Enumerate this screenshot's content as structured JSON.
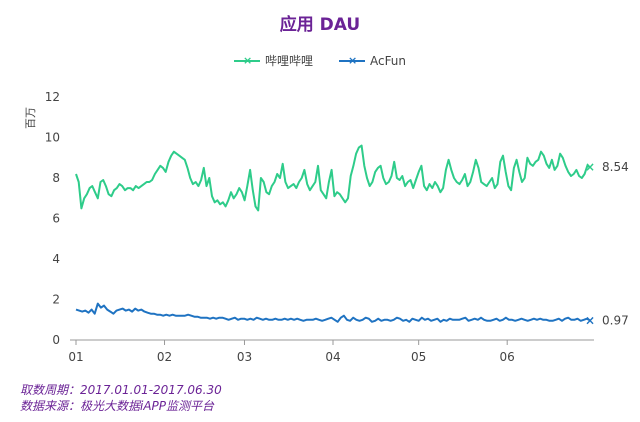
{
  "colors": {
    "title": "#6b2396",
    "bilibili": "#2ecc8a",
    "acfun": "#1f73c2"
  },
  "chart_data": {
    "type": "line",
    "title": "应用 DAU",
    "ylabel": "百万",
    "ylim": [
      0,
      12
    ],
    "yticks": [
      0,
      2,
      4,
      6,
      8,
      10,
      12
    ],
    "x_range": [
      "2017-01-01",
      "2017-06-30"
    ],
    "xticks": [
      "01",
      "02",
      "03",
      "04",
      "05",
      "06"
    ],
    "grid": false,
    "legend_position": "top-center",
    "series": [
      {
        "name": "哔哩哔哩",
        "color": "#2ecc8a",
        "end_label": "8.54",
        "values": [
          8.2,
          7.8,
          6.5,
          7.0,
          7.2,
          7.5,
          7.6,
          7.3,
          7.0,
          7.8,
          7.9,
          7.6,
          7.2,
          7.1,
          7.4,
          7.5,
          7.7,
          7.6,
          7.4,
          7.5,
          7.5,
          7.4,
          7.6,
          7.5,
          7.6,
          7.7,
          7.8,
          7.8,
          7.9,
          8.2,
          8.4,
          8.6,
          8.5,
          8.3,
          8.8,
          9.1,
          9.3,
          9.2,
          9.1,
          9.0,
          8.9,
          8.5,
          8.0,
          7.7,
          7.8,
          7.6,
          7.9,
          8.5,
          7.6,
          8.0,
          7.1,
          6.8,
          6.9,
          6.7,
          6.8,
          6.6,
          6.9,
          7.3,
          7.0,
          7.2,
          7.5,
          7.3,
          6.9,
          7.6,
          8.4,
          7.4,
          6.6,
          6.4,
          8.0,
          7.8,
          7.3,
          7.2,
          7.6,
          7.8,
          8.2,
          8.0,
          8.7,
          7.8,
          7.5,
          7.6,
          7.7,
          7.5,
          7.8,
          8.0,
          8.4,
          7.7,
          7.4,
          7.6,
          7.8,
          8.6,
          7.4,
          7.2,
          7.0,
          7.8,
          8.4,
          7.1,
          7.3,
          7.2,
          7.0,
          6.8,
          7.0,
          8.1,
          8.6,
          9.2,
          9.5,
          9.6,
          8.6,
          8.0,
          7.6,
          7.8,
          8.3,
          8.5,
          8.6,
          8.0,
          7.7,
          7.8,
          8.1,
          8.8,
          8.0,
          7.9,
          8.1,
          7.6,
          7.8,
          7.9,
          7.5,
          7.9,
          8.3,
          8.6,
          7.6,
          7.4,
          7.7,
          7.5,
          7.8,
          7.6,
          7.3,
          7.5,
          8.4,
          8.9,
          8.4,
          8.0,
          7.8,
          7.7,
          7.9,
          8.2,
          7.6,
          7.8,
          8.3,
          8.9,
          8.5,
          7.8,
          7.7,
          7.6,
          7.8,
          8.0,
          7.5,
          7.7,
          8.8,
          9.1,
          8.3,
          7.6,
          7.4,
          8.5,
          8.9,
          8.3,
          7.8,
          8.0,
          9.0,
          8.7,
          8.6,
          8.8,
          8.9,
          9.3,
          9.1,
          8.7,
          8.5,
          8.9,
          8.4,
          8.6,
          9.2,
          9.0,
          8.6,
          8.3,
          8.1,
          8.2,
          8.4,
          8.1,
          8.0,
          8.2,
          8.6,
          8.54
        ]
      },
      {
        "name": "AcFun",
        "color": "#1f73c2",
        "end_label": "0.97",
        "values": [
          1.5,
          1.45,
          1.4,
          1.45,
          1.35,
          1.5,
          1.3,
          1.8,
          1.6,
          1.7,
          1.5,
          1.4,
          1.3,
          1.45,
          1.5,
          1.55,
          1.45,
          1.5,
          1.4,
          1.55,
          1.45,
          1.5,
          1.4,
          1.35,
          1.3,
          1.3,
          1.25,
          1.25,
          1.2,
          1.25,
          1.2,
          1.25,
          1.2,
          1.2,
          1.2,
          1.2,
          1.25,
          1.2,
          1.15,
          1.15,
          1.1,
          1.1,
          1.1,
          1.05,
          1.1,
          1.05,
          1.1,
          1.1,
          1.05,
          1.0,
          1.05,
          1.1,
          1.0,
          1.05,
          1.05,
          1.0,
          1.05,
          1.0,
          1.1,
          1.05,
          1.0,
          1.05,
          1.0,
          1.0,
          1.05,
          1.0,
          1.0,
          1.05,
          1.0,
          1.05,
          1.0,
          1.05,
          1.0,
          0.95,
          1.0,
          1.0,
          1.0,
          1.05,
          1.0,
          0.95,
          1.0,
          1.05,
          1.1,
          1.0,
          0.9,
          1.1,
          1.2,
          1.0,
          0.95,
          1.1,
          1.0,
          0.95,
          1.0,
          1.1,
          1.05,
          0.9,
          0.95,
          1.05,
          0.95,
          1.0,
          1.0,
          0.95,
          1.0,
          1.1,
          1.05,
          0.95,
          1.0,
          0.9,
          1.05,
          1.0,
          0.95,
          1.1,
          1.0,
          1.05,
          0.95,
          1.0,
          1.05,
          0.9,
          1.0,
          0.95,
          1.05,
          1.0,
          1.0,
          1.0,
          1.05,
          1.1,
          0.95,
          1.0,
          1.05,
          1.0,
          1.1,
          1.0,
          0.95,
          0.95,
          1.0,
          1.05,
          0.95,
          1.0,
          1.1,
          1.0,
          1.0,
          0.95,
          1.0,
          1.05,
          1.0,
          0.95,
          1.0,
          1.05,
          1.0,
          1.05,
          1.0,
          1.0,
          0.95,
          0.95,
          1.0,
          1.05,
          0.95,
          1.05,
          1.1,
          1.0,
          1.0,
          1.05,
          0.95,
          1.0,
          1.05,
          0.97
        ]
      }
    ]
  },
  "footer": {
    "line1": "取数周期：2017.01.01-2017.06.30",
    "line2": "数据来源：极光大数据iAPP监测平台"
  }
}
